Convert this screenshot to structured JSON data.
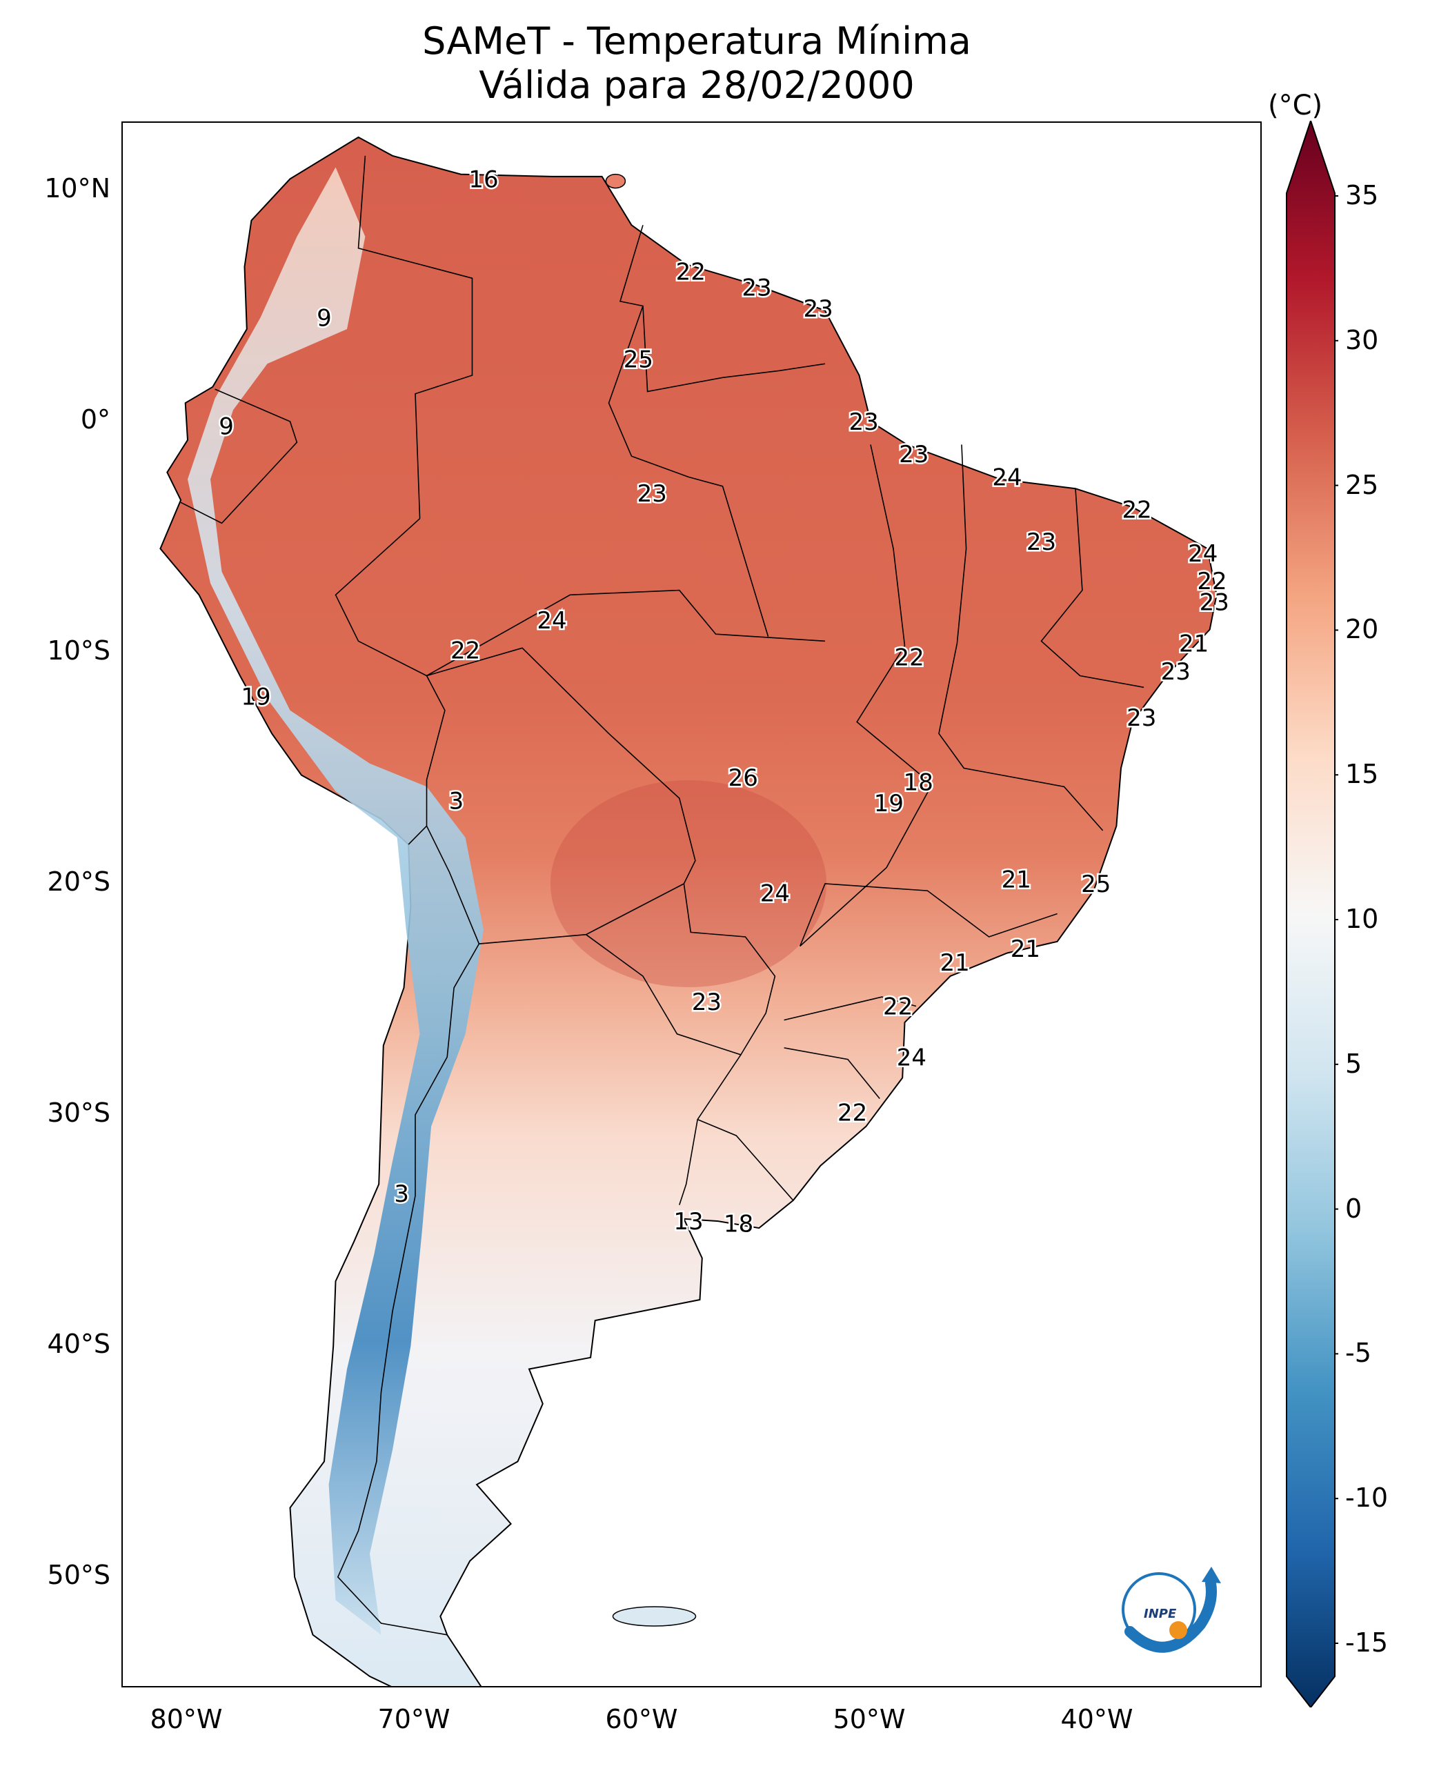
{
  "title": {
    "line1": "SAMeT - Temperatura Mínima",
    "line2": "Válida para 28/02/2000"
  },
  "axes": {
    "lat_ticks": [
      "10°N",
      "0°",
      "10°S",
      "20°S",
      "30°S",
      "40°S",
      "50°S"
    ],
    "lon_ticks": [
      "80°W",
      "70°W",
      "60°W",
      "50°W",
      "40°W"
    ]
  },
  "colorbar": {
    "unit": "(°C)",
    "ticks": [
      "35",
      "30",
      "25",
      "20",
      "15",
      "10",
      "5",
      "0",
      "-5",
      "-10",
      "-15"
    ],
    "colors": [
      "#67001f",
      "#b2182b",
      "#d6604d",
      "#f4a582",
      "#fddbc7",
      "#f7f7f7",
      "#d1e5f0",
      "#92c5de",
      "#4393c3",
      "#2166ac",
      "#053061"
    ]
  },
  "logo": {
    "text": "INPE"
  },
  "labels": [
    {
      "value": "16",
      "lon": -67.0,
      "lat": 10.5
    },
    {
      "value": "9",
      "lon": -74.0,
      "lat": 4.5
    },
    {
      "value": "9",
      "lon": -78.3,
      "lat": -0.2
    },
    {
      "value": "22",
      "lon": -57.9,
      "lat": 6.5
    },
    {
      "value": "23",
      "lon": -55.0,
      "lat": 5.8
    },
    {
      "value": "23",
      "lon": -52.3,
      "lat": 4.9
    },
    {
      "value": "25",
      "lon": -60.2,
      "lat": 2.7
    },
    {
      "value": "23",
      "lon": -50.3,
      "lat": 0.0
    },
    {
      "value": "23",
      "lon": -48.1,
      "lat": -1.4
    },
    {
      "value": "24",
      "lon": -44.0,
      "lat": -2.4
    },
    {
      "value": "22",
      "lon": -38.3,
      "lat": -3.8
    },
    {
      "value": "23",
      "lon": -42.5,
      "lat": -5.2
    },
    {
      "value": "24",
      "lon": -35.4,
      "lat": -5.7
    },
    {
      "value": "22",
      "lon": -35.0,
      "lat": -6.9
    },
    {
      "value": "23",
      "lon": -34.9,
      "lat": -7.8
    },
    {
      "value": "23",
      "lon": -59.6,
      "lat": -3.1
    },
    {
      "value": "24",
      "lon": -64.0,
      "lat": -8.6
    },
    {
      "value": "22",
      "lon": -67.8,
      "lat": -9.9
    },
    {
      "value": "22",
      "lon": -48.3,
      "lat": -10.2
    },
    {
      "value": "21",
      "lon": -35.8,
      "lat": -9.6
    },
    {
      "value": "23",
      "lon": -36.6,
      "lat": -10.8
    },
    {
      "value": "23",
      "lon": -38.1,
      "lat": -12.8
    },
    {
      "value": "19",
      "lon": -77.0,
      "lat": -11.9
    },
    {
      "value": "3",
      "lon": -68.2,
      "lat": -16.4
    },
    {
      "value": "26",
      "lon": -55.6,
      "lat": -15.4
    },
    {
      "value": "18",
      "lon": -47.9,
      "lat": -15.6
    },
    {
      "value": "19",
      "lon": -49.2,
      "lat": -16.5
    },
    {
      "value": "24",
      "lon": -54.2,
      "lat": -20.4
    },
    {
      "value": "21",
      "lon": -43.6,
      "lat": -19.8
    },
    {
      "value": "25",
      "lon": -40.1,
      "lat": -20.0
    },
    {
      "value": "21",
      "lon": -46.3,
      "lat": -23.4
    },
    {
      "value": "21",
      "lon": -43.2,
      "lat": -22.8
    },
    {
      "value": "23",
      "lon": -57.2,
      "lat": -25.1
    },
    {
      "value": "22",
      "lon": -48.8,
      "lat": -25.3
    },
    {
      "value": "24",
      "lon": -48.2,
      "lat": -27.5
    },
    {
      "value": "22",
      "lon": -50.8,
      "lat": -29.9
    },
    {
      "value": "3",
      "lon": -70.6,
      "lat": -33.4
    },
    {
      "value": "13",
      "lon": -58.0,
      "lat": -34.6
    },
    {
      "value": "18",
      "lon": -55.8,
      "lat": -34.7
    }
  ]
}
